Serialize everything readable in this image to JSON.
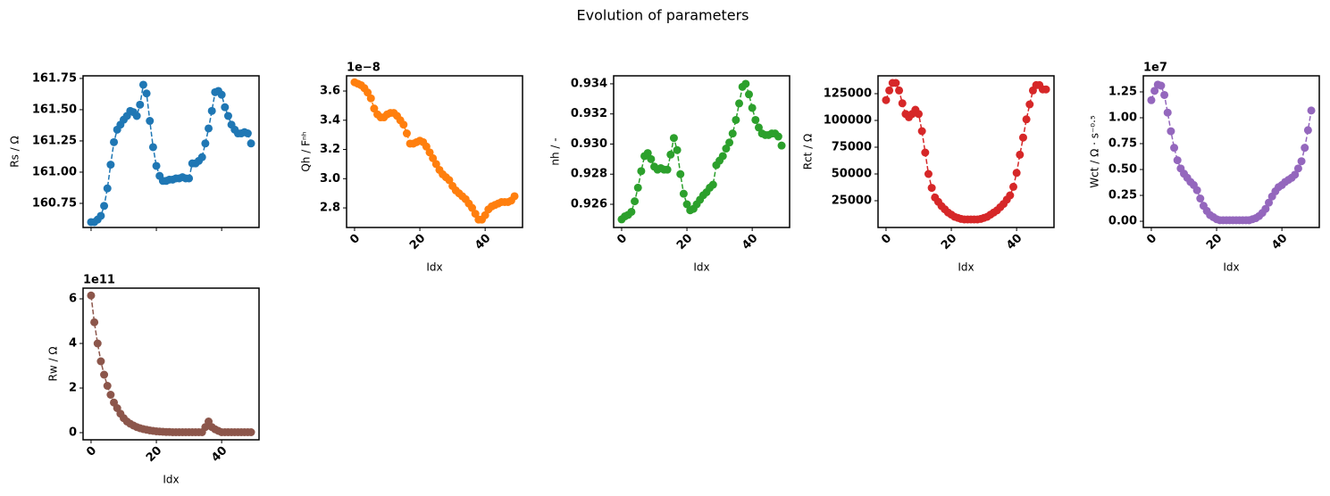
{
  "title": "Evolution of parameters",
  "chart_data": [
    {
      "type": "line",
      "ylabel": "Rs / Ω",
      "color": "#1f77b4",
      "linestyle": "dashed",
      "marker": "o",
      "show_xtick_labels": false,
      "x": [
        0,
        1,
        2,
        3,
        4,
        5,
        6,
        7,
        8,
        9,
        10,
        11,
        12,
        13,
        14,
        15,
        16,
        17,
        18,
        19,
        20,
        21,
        22,
        23,
        24,
        25,
        26,
        27,
        28,
        29,
        30,
        31,
        32,
        33,
        34,
        35,
        36,
        37,
        38,
        39,
        40,
        41,
        42,
        43,
        44,
        45,
        46,
        47,
        48,
        49
      ],
      "values": [
        160.6,
        160.6,
        160.62,
        160.65,
        160.73,
        160.87,
        161.06,
        161.24,
        161.34,
        161.38,
        161.42,
        161.45,
        161.49,
        161.48,
        161.45,
        161.54,
        161.7,
        161.63,
        161.41,
        161.2,
        161.05,
        160.97,
        160.93,
        160.93,
        160.94,
        160.94,
        160.95,
        160.95,
        160.96,
        160.95,
        160.95,
        161.07,
        161.07,
        161.09,
        161.12,
        161.23,
        161.35,
        161.49,
        161.64,
        161.65,
        161.62,
        161.52,
        161.45,
        161.38,
        161.34,
        161.31,
        161.31,
        161.32,
        161.31,
        161.23
      ],
      "xlim": [
        -2.45,
        51.45
      ],
      "ylim": [
        160.557,
        161.771
      ],
      "xticks": [
        0,
        20,
        40
      ],
      "yticks": [
        161.75,
        {
          "value": 161.5,
          "label": "161.50"
        },
        161.25,
        {
          "value": 161,
          "label": "161.00"
        },
        160.75
      ]
    },
    {
      "type": "line",
      "ylabel": "Qh / Fⁿʰ",
      "xlabel": "Idx",
      "offset_text": "1e−8",
      "color": "#ff7f0e",
      "linestyle": "dashed",
      "marker": "o",
      "show_xtick_labels": true,
      "x": [
        0,
        1,
        2,
        3,
        4,
        5,
        6,
        7,
        8,
        9,
        10,
        11,
        12,
        13,
        14,
        15,
        16,
        17,
        18,
        19,
        20,
        21,
        22,
        23,
        24,
        25,
        26,
        27,
        28,
        29,
        30,
        31,
        32,
        33,
        34,
        35,
        36,
        37,
        38,
        39,
        40,
        41,
        42,
        43,
        44,
        45,
        46,
        47,
        48,
        49
      ],
      "values": [
        3.66,
        3.65,
        3.64,
        3.62,
        3.59,
        3.55,
        3.48,
        3.44,
        3.42,
        3.42,
        3.44,
        3.45,
        3.45,
        3.43,
        3.4,
        3.37,
        3.31,
        3.24,
        3.24,
        3.25,
        3.26,
        3.25,
        3.22,
        3.18,
        3.14,
        3.1,
        3.06,
        3.03,
        3.01,
        2.99,
        2.95,
        2.92,
        2.9,
        2.88,
        2.86,
        2.83,
        2.8,
        2.76,
        2.72,
        2.72,
        2.75,
        2.79,
        2.81,
        2.82,
        2.83,
        2.84,
        2.84,
        2.84,
        2.85,
        2.88
      ],
      "xlim": [
        -2.45,
        51.45
      ],
      "ylim": [
        2.666,
        3.704
      ],
      "xticks": [
        0,
        20,
        40
      ],
      "yticks": [
        3.6,
        3.4,
        3.2,
        {
          "value": 3,
          "label": "3.0"
        },
        2.8
      ]
    },
    {
      "type": "line",
      "ylabel": "nh / -",
      "xlabel": "Idx",
      "color": "#2ca02c",
      "linestyle": "dashed",
      "marker": "o",
      "show_xtick_labels": true,
      "x": [
        0,
        1,
        2,
        3,
        4,
        5,
        6,
        7,
        8,
        9,
        10,
        11,
        12,
        13,
        14,
        15,
        16,
        17,
        18,
        19,
        20,
        21,
        22,
        23,
        24,
        25,
        26,
        27,
        28,
        29,
        30,
        31,
        32,
        33,
        34,
        35,
        36,
        37,
        38,
        39,
        40,
        41,
        42,
        43,
        44,
        45,
        46,
        47,
        48,
        49
      ],
      "values": [
        0.925,
        0.9252,
        0.9253,
        0.9255,
        0.9262,
        0.9271,
        0.9282,
        0.9292,
        0.9294,
        0.929,
        0.9285,
        0.9283,
        0.9284,
        0.9283,
        0.9283,
        0.9293,
        0.9304,
        0.9296,
        0.928,
        0.9267,
        0.926,
        0.9256,
        0.9257,
        0.926,
        0.9263,
        0.9266,
        0.9268,
        0.9271,
        0.9273,
        0.9286,
        0.9289,
        0.9292,
        0.9297,
        0.9301,
        0.9307,
        0.9316,
        0.9327,
        0.9338,
        0.934,
        0.9333,
        0.9324,
        0.9316,
        0.9311,
        0.9307,
        0.9306,
        0.9306,
        0.9307,
        0.9307,
        0.9305,
        0.9299
      ],
      "xlim": [
        -2.45,
        51.45
      ],
      "ylim": [
        0.92446,
        0.93453
      ],
      "xticks": [
        0,
        20,
        40
      ],
      "yticks": [
        0.934,
        0.932,
        {
          "value": 0.93,
          "label": "0.930"
        },
        0.928,
        0.926
      ]
    },
    {
      "type": "line",
      "ylabel": "Rct / Ω",
      "xlabel": "Idx",
      "color": "#d62728",
      "linestyle": "dashed",
      "marker": "o",
      "show_xtick_labels": true,
      "x": [
        0,
        1,
        2,
        3,
        4,
        5,
        6,
        7,
        8,
        9,
        10,
        11,
        12,
        13,
        14,
        15,
        16,
        17,
        18,
        19,
        20,
        21,
        22,
        23,
        24,
        25,
        26,
        27,
        28,
        29,
        30,
        31,
        32,
        33,
        34,
        35,
        36,
        37,
        38,
        39,
        40,
        41,
        42,
        43,
        44,
        45,
        46,
        47,
        48,
        49
      ],
      "values": [
        119000,
        128000,
        135000,
        135000,
        128000,
        116000,
        106000,
        103000,
        106000,
        110000,
        106000,
        90000,
        70000,
        50000,
        37000,
        28000,
        24000,
        20000,
        17000,
        14000,
        12000,
        10000,
        9000,
        8000,
        7500,
        7500,
        7500,
        7500,
        7500,
        8000,
        9000,
        10000,
        12000,
        14000,
        16000,
        19000,
        22000,
        26000,
        30000,
        38000,
        51000,
        68000,
        84000,
        101000,
        115000,
        128000,
        133000,
        133000,
        129000,
        129000
      ],
      "xlim": [
        -2.45,
        51.45
      ],
      "ylim": [
        0,
        141667
      ],
      "xticks": [
        0,
        20,
        40
      ],
      "yticks": [
        125000,
        100000,
        75000,
        50000,
        25000
      ]
    },
    {
      "type": "line",
      "ylabel": "Wct / Ω · s⁻⁰·⁵",
      "xlabel": "Idx",
      "offset_text": "1e7",
      "color": "#9467bd",
      "linestyle": "dashed",
      "marker": "o",
      "show_xtick_labels": true,
      "x": [
        0,
        1,
        2,
        3,
        4,
        5,
        6,
        7,
        8,
        9,
        10,
        11,
        12,
        13,
        14,
        15,
        16,
        17,
        18,
        19,
        20,
        21,
        22,
        23,
        24,
        25,
        26,
        27,
        28,
        29,
        30,
        31,
        32,
        33,
        34,
        35,
        36,
        37,
        38,
        39,
        40,
        41,
        42,
        43,
        44,
        45,
        46,
        47,
        48,
        49
      ],
      "values": [
        1.17,
        1.26,
        1.32,
        1.31,
        1.22,
        1.05,
        0.87,
        0.71,
        0.59,
        0.51,
        0.46,
        0.42,
        0.38,
        0.35,
        0.3,
        0.22,
        0.15,
        0.1,
        0.06,
        0.04,
        0.02,
        0.01,
        0.01,
        0.01,
        0.01,
        0.01,
        0.01,
        0.01,
        0.01,
        0.01,
        0.01,
        0.02,
        0.03,
        0.05,
        0.08,
        0.12,
        0.18,
        0.24,
        0.29,
        0.33,
        0.35,
        0.38,
        0.4,
        0.42,
        0.45,
        0.51,
        0.58,
        0.71,
        0.88,
        1.07
      ],
      "xlim": [
        -2.45,
        51.45
      ],
      "ylim": [
        -0.06,
        1.405
      ],
      "xticks": [
        0,
        20,
        40
      ],
      "yticks": [
        1.25,
        {
          "value": 1,
          "label": "1.00"
        },
        0.75,
        {
          "value": 0.5,
          "label": "0.50"
        },
        0.25,
        {
          "value": 0,
          "label": "0.00"
        }
      ]
    },
    {
      "type": "line",
      "ylabel": "Rw / Ω",
      "xlabel": "Idx",
      "offset_text": "1e11",
      "color": "#8c564b",
      "linestyle": "dashed",
      "marker": "o",
      "show_xtick_labels": true,
      "x": [
        0,
        1,
        2,
        3,
        4,
        5,
        6,
        7,
        8,
        9,
        10,
        11,
        12,
        13,
        14,
        15,
        16,
        17,
        18,
        19,
        20,
        21,
        22,
        23,
        24,
        25,
        26,
        27,
        28,
        29,
        30,
        31,
        32,
        33,
        34,
        35,
        36,
        37,
        38,
        39,
        40,
        41,
        42,
        43,
        44,
        45,
        46,
        47,
        48,
        49
      ],
      "values": [
        6.15,
        4.95,
        4.0,
        3.2,
        2.6,
        2.1,
        1.7,
        1.35,
        1.1,
        0.85,
        0.65,
        0.5,
        0.4,
        0.32,
        0.25,
        0.2,
        0.16,
        0.13,
        0.1,
        0.08,
        0.06,
        0.05,
        0.04,
        0.03,
        0.03,
        0.02,
        0.02,
        0.02,
        0.02,
        0.02,
        0.02,
        0.02,
        0.02,
        0.02,
        0.02,
        0.25,
        0.5,
        0.25,
        0.15,
        0.08,
        0.02,
        0.02,
        0.02,
        0.02,
        0.02,
        0.02,
        0.02,
        0.02,
        0.02,
        0.02
      ],
      "xlim": [
        -2.45,
        51.45
      ],
      "ylim": [
        -0.32,
        6.48
      ],
      "xticks": [
        0,
        20,
        40
      ],
      "yticks": [
        6,
        4,
        2,
        0
      ]
    }
  ]
}
